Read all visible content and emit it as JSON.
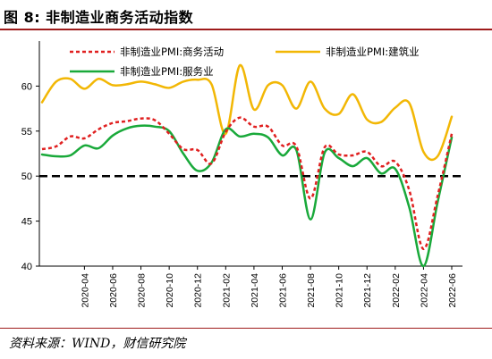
{
  "title": "图 8:  非制造业商务活动指数",
  "source": "资料来源：WIND，财信研究院",
  "colors": {
    "business": "#e02020",
    "construction": "#f2b705",
    "services": "#19a93a",
    "axis": "#000000"
  },
  "chart_data": {
    "type": "line",
    "title": "",
    "xlabel": "",
    "ylabel": "",
    "ylim": [
      40,
      65
    ],
    "yticks": [
      40,
      45,
      50,
      55,
      60
    ],
    "grid": false,
    "legend_position": "top",
    "reference_line": {
      "y": 50,
      "style": "dashed",
      "color": "#000000"
    },
    "x": [
      "2020-01",
      "2020-02",
      "2020-03",
      "2020-04",
      "2020-05",
      "2020-06",
      "2020-07",
      "2020-08",
      "2020-09",
      "2020-10",
      "2020-11",
      "2020-12",
      "2021-01",
      "2021-02",
      "2021-03",
      "2021-04",
      "2021-05",
      "2021-06",
      "2021-07",
      "2021-08",
      "2021-09",
      "2021-10",
      "2021-11",
      "2021-12",
      "2022-01",
      "2022-02",
      "2022-03",
      "2022-04",
      "2022-05",
      "2022-06"
    ],
    "xtick_labels": [
      "2020-04",
      "2020-06",
      "2020-08",
      "2020-10",
      "2020-12",
      "2021-02",
      "2021-04",
      "2021-06",
      "2021-08",
      "2021-10",
      "2021-12",
      "2022-02",
      "2022-04",
      "2022-06"
    ],
    "series": [
      {
        "name": "非制造业PMI:商务活动",
        "key": "business",
        "style": "dashed",
        "values": [
          53.0,
          53.3,
          54.4,
          54.2,
          55.2,
          55.9,
          56.1,
          56.4,
          56.2,
          54.7,
          53.0,
          52.9,
          51.4,
          54.9,
          56.5,
          55.5,
          55.5,
          53.4,
          53.3,
          47.5,
          53.2,
          52.4,
          52.3,
          52.7,
          51.1,
          51.6,
          48.4,
          41.9,
          47.8,
          54.7
        ]
      },
      {
        "name": "非制造业PMI:建筑业",
        "key": "construction",
        "style": "solid",
        "values": [
          58.2,
          60.5,
          60.8,
          59.7,
          60.8,
          60.1,
          60.2,
          60.5,
          60.2,
          59.8,
          60.5,
          60.7,
          60.2,
          54.7,
          62.3,
          57.4,
          60.1,
          60.1,
          57.5,
          60.5,
          57.5,
          56.9,
          59.1,
          56.3,
          56.0,
          57.6,
          58.1,
          52.7,
          52.2,
          56.6
        ]
      },
      {
        "name": "非制造业PMI:服务业",
        "key": "services",
        "style": "solid",
        "values": [
          52.4,
          52.2,
          52.3,
          53.4,
          53.1,
          54.5,
          55.3,
          55.6,
          55.5,
          55.0,
          52.5,
          50.6,
          51.5,
          55.2,
          54.4,
          54.7,
          54.3,
          52.3,
          52.9,
          45.2,
          52.6,
          52.0,
          51.1,
          52.0,
          50.3,
          50.8,
          46.5,
          40.0,
          47.1,
          54.3
        ]
      }
    ]
  }
}
